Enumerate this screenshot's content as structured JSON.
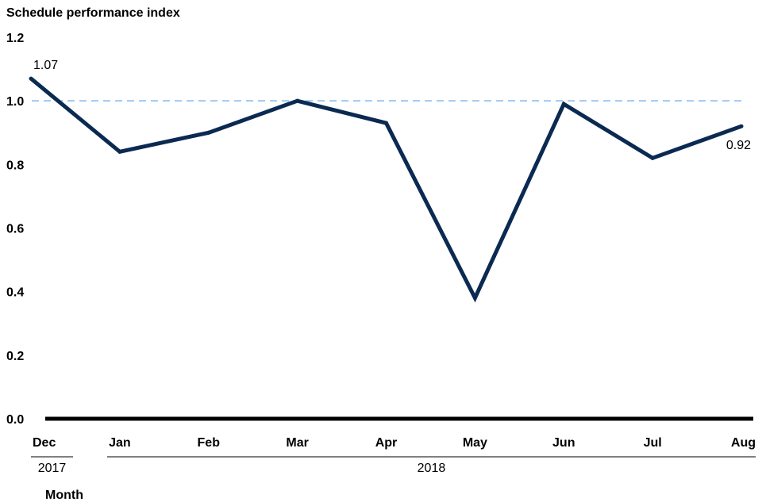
{
  "chart_data": {
    "type": "line",
    "ylabel": "Schedule performance index",
    "xlabel": "Month",
    "categories": [
      "Dec",
      "Jan",
      "Feb",
      "Mar",
      "Apr",
      "May",
      "Jun",
      "Jul",
      "Aug"
    ],
    "year_groups": [
      {
        "label": "2017",
        "start": 0,
        "end": 0
      },
      {
        "label": "2018",
        "start": 1,
        "end": 8
      }
    ],
    "series": [
      {
        "values": [
          1.07,
          0.84,
          0.9,
          1.0,
          0.93,
          0.38,
          0.99,
          0.82,
          0.92
        ],
        "color": "#0b2a52"
      }
    ],
    "reference_line": {
      "value": 1.0,
      "style": "dashed",
      "color": "#9ec9f2"
    },
    "data_labels": [
      {
        "index": 0,
        "text": "1.07"
      },
      {
        "index": 8,
        "text": "0.92"
      }
    ],
    "yticks": [
      "0.0",
      "0.2",
      "0.4",
      "0.6",
      "0.8",
      "1.0",
      "1.2"
    ],
    "ylim": [
      0,
      1.2
    ],
    "grid": false,
    "axis_color": "#000000"
  }
}
